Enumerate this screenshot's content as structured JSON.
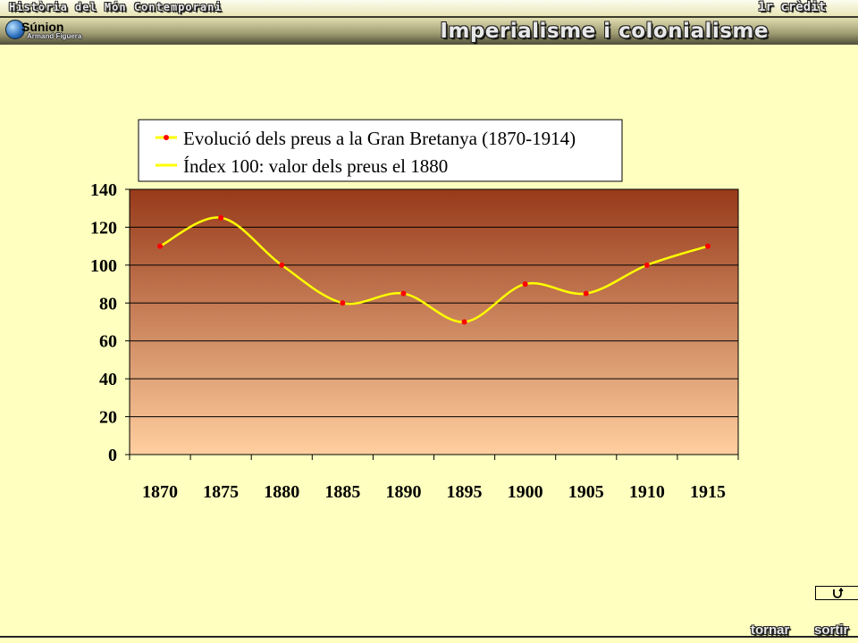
{
  "header": {
    "course_title": "Història del Món Contemporani",
    "credit_label": "1r crèdit",
    "lesson_title": "Imperialisme i colonialisme",
    "logo": {
      "name": "Súnion",
      "author": "Armand Figuera"
    }
  },
  "footer": {
    "back_label": "tornar",
    "exit_label": "sortir",
    "return_icon": "return-arrow-icon"
  },
  "colors": {
    "page_background": "#ffffc0",
    "plot_gradient_top": "#973a1a",
    "plot_gradient_bottom": "#ffcf9f",
    "line_color": "#ffff00",
    "marker_color": "#ff0000"
  },
  "chart_data": {
    "type": "line",
    "title": "",
    "xlabel": "",
    "ylabel": "",
    "categories": [
      "1870",
      "1875",
      "1880",
      "1885",
      "1890",
      "1895",
      "1900",
      "1905",
      "1910",
      "1915"
    ],
    "ylim": [
      0,
      140
    ],
    "yticks": [
      0,
      20,
      40,
      60,
      80,
      100,
      120,
      140
    ],
    "grid": true,
    "smooth": true,
    "legend_position": "top-left",
    "legend": [
      "Evolució dels preus a la Gran Bretanya (1870-1914)",
      "Índex 100: valor dels preus el 1880"
    ],
    "series": [
      {
        "name": "Evolució dels preus a la Gran Bretanya (1870-1914)",
        "values": [
          110,
          125,
          100,
          80,
          85,
          70,
          90,
          85,
          100,
          110
        ]
      }
    ]
  }
}
